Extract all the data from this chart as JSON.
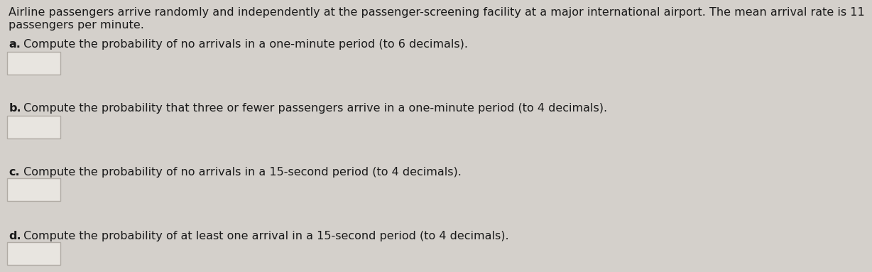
{
  "background_color": "#d4d0cb",
  "text_color": "#1a1a1a",
  "box_facecolor": "#e8e5e0",
  "box_edgecolor": "#b0aba4",
  "intro_line1": "Airline passengers arrive randomly and independently at the passenger-screening facility at a major international airport. The mean arrival rate is 11",
  "intro_line2": "passengers per minute.",
  "q_a_bold": "a.",
  "q_a_rest": " Compute the probability of no arrivals in a one-minute period (to 6 decimals).",
  "q_b_bold": "b.",
  "q_b_rest": " Compute the probability that three or fewer passengers arrive in a one-minute period (to 4 decimals).",
  "q_c_bold": "c.",
  "q_c_rest": " Compute the probability of no arrivals in a 15-second period (to 4 decimals).",
  "q_d_bold": "d.",
  "q_d_rest": " Compute the probability of at least one arrival in a 15-second period (to 4 decimals).",
  "font_size": 11.5,
  "fig_width": 12.0,
  "fig_height": 4.09
}
